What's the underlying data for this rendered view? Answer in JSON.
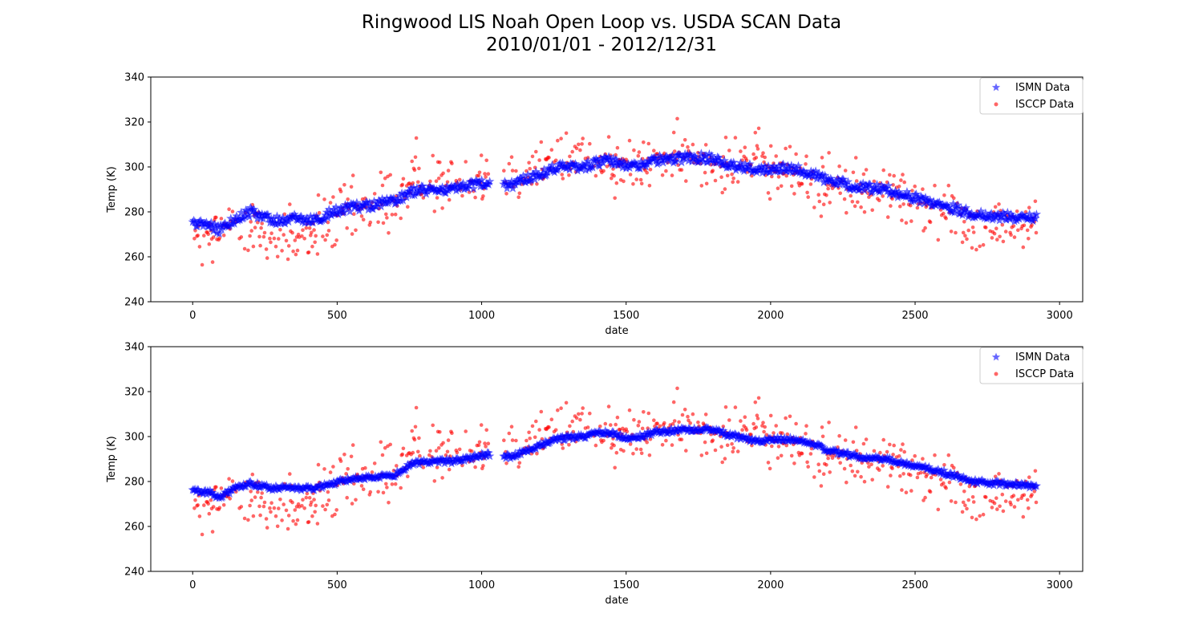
{
  "title_line1": "Ringwood LIS Noah Open Loop vs. USDA SCAN Data",
  "title_line2": "2010/01/01 - 2012/12/31",
  "colors": {
    "ismn": "#0000ff",
    "isccp": "#ff0000"
  },
  "chart_data": [
    {
      "type": "scatter",
      "xlabel": "date",
      "ylabel": "Temp (K)",
      "xlim": [
        -145,
        3080
      ],
      "ylim": [
        240,
        340
      ],
      "xticks": [
        "0",
        "500",
        "1000",
        "1500",
        "2000",
        "2500",
        "3000"
      ],
      "yticks": [
        "240",
        "260",
        "280",
        "300",
        "320",
        "340"
      ],
      "legend": {
        "position": "top-right",
        "entries": [
          "ISMN Data",
          "ISCCP Data"
        ]
      },
      "series": [
        {
          "name": "ISMN Data",
          "marker": "star",
          "trend_x": [
            0,
            60,
            90,
            150,
            200,
            280,
            350,
            420,
            480,
            550,
            620,
            700,
            760,
            830,
            900,
            1020,
            1100,
            1180,
            1260,
            1350,
            1430,
            1520,
            1600,
            1700,
            1800,
            1880,
            1950,
            2060,
            2120,
            2200,
            2300,
            2400,
            2500,
            2600,
            2700,
            2800,
            2920
          ],
          "trend_y": [
            275,
            274,
            272,
            277,
            280,
            276,
            277,
            276,
            280,
            282,
            283,
            285,
            289,
            290,
            290,
            293,
            292,
            296,
            300,
            300,
            303,
            300,
            303,
            304,
            304,
            300,
            299,
            300,
            298,
            294,
            291,
            290,
            286,
            283,
            279,
            278,
            277
          ],
          "jitter": 2.0
        },
        {
          "name": "ISCCP Data",
          "marker": "circle",
          "trend_x": [
            0,
            50,
            100,
            180,
            260,
            330,
            420,
            500,
            600,
            660,
            700,
            760,
            830,
            900,
            1000,
            1100,
            1200,
            1300,
            1400,
            1500,
            1600,
            1700,
            1800,
            1900,
            2000,
            2100,
            2200,
            2300,
            2400,
            2500,
            2600,
            2700,
            2800,
            2920
          ],
          "trend_y": [
            266,
            266,
            272,
            276,
            269,
            267,
            272,
            278,
            280,
            282,
            287,
            293,
            295,
            292,
            298,
            298,
            300,
            303,
            305,
            300,
            302,
            305,
            304,
            304,
            300,
            296,
            290,
            289,
            288,
            284,
            281,
            276,
            274,
            273
          ],
          "spread": 9.5
        }
      ]
    },
    {
      "type": "scatter",
      "xlabel": "date",
      "ylabel": "Temp (K)",
      "xlim": [
        -145,
        3080
      ],
      "ylim": [
        240,
        340
      ],
      "xticks": [
        "0",
        "500",
        "1000",
        "1500",
        "2000",
        "2500",
        "3000"
      ],
      "yticks": [
        "240",
        "260",
        "280",
        "300",
        "320",
        "340"
      ],
      "legend": {
        "position": "top-right",
        "entries": [
          "ISMN Data",
          "ISCCP Data"
        ]
      },
      "series": [
        {
          "name": "ISMN Data",
          "marker": "star",
          "trend_x": [
            0,
            60,
            90,
            150,
            200,
            280,
            350,
            420,
            480,
            550,
            620,
            700,
            760,
            830,
            900,
            1020,
            1100,
            1180,
            1260,
            1350,
            1430,
            1520,
            1600,
            1700,
            1800,
            1880,
            1950,
            2060,
            2120,
            2200,
            2300,
            2400,
            2500,
            2600,
            2700,
            2800,
            2920
          ],
          "trend_y": [
            276,
            275,
            273,
            277,
            279,
            277,
            277,
            277,
            279,
            281,
            282,
            283,
            288,
            289,
            289,
            292,
            291,
            295,
            299,
            300,
            302,
            299,
            302,
            303,
            303,
            300,
            298,
            299,
            298,
            294,
            291,
            290,
            287,
            284,
            280,
            279,
            278
          ],
          "jitter": 1.0
        },
        {
          "name": "ISCCP Data",
          "marker": "circle",
          "trend_x": [
            0,
            50,
            100,
            180,
            260,
            330,
            420,
            500,
            600,
            660,
            700,
            760,
            830,
            900,
            1000,
            1100,
            1200,
            1300,
            1400,
            1500,
            1600,
            1700,
            1800,
            1900,
            2000,
            2100,
            2200,
            2300,
            2400,
            2500,
            2600,
            2700,
            2800,
            2920
          ],
          "trend_y": [
            266,
            266,
            272,
            276,
            269,
            267,
            272,
            278,
            280,
            282,
            287,
            293,
            295,
            292,
            298,
            298,
            300,
            303,
            305,
            300,
            302,
            305,
            304,
            304,
            300,
            296,
            290,
            289,
            288,
            284,
            281,
            276,
            274,
            273
          ],
          "spread": 9.5
        }
      ]
    }
  ]
}
